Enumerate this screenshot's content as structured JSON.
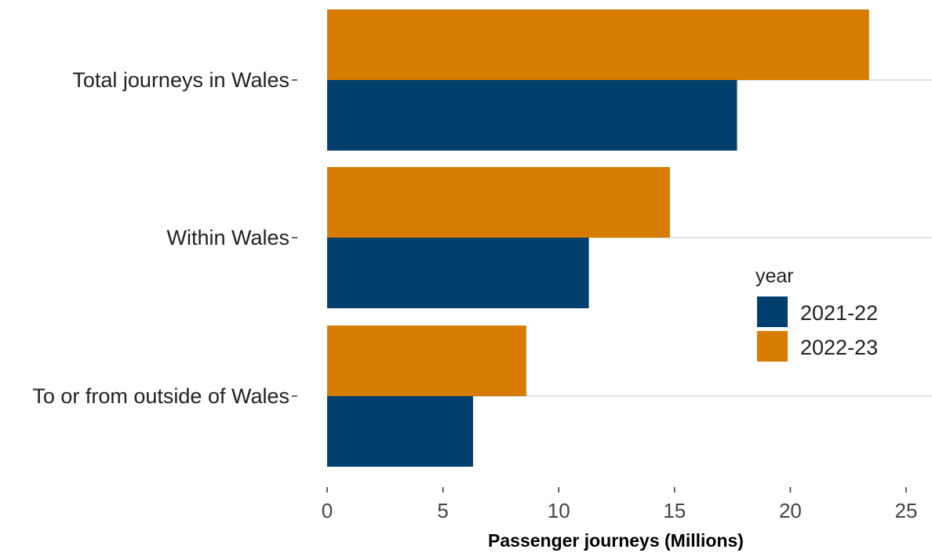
{
  "chart_data": {
    "type": "bar",
    "orientation": "horizontal",
    "categories": [
      "Total journeys in Wales",
      "Within Wales",
      "To or from outside of Wales"
    ],
    "series": [
      {
        "name": "2021-22",
        "values": [
          17.7,
          11.3,
          6.3
        ],
        "color": "#003f6e"
      },
      {
        "name": "2022-23",
        "values": [
          23.4,
          14.8,
          8.6
        ],
        "color": "#d67c00"
      }
    ],
    "xlabel": "Passenger journeys (Millions)",
    "ylabel": "",
    "xlim": [
      0,
      25
    ],
    "xticks": [
      0,
      5,
      10,
      15,
      20,
      25
    ],
    "legend_title": "year",
    "legend_position": "right",
    "grid": "major gridlines at category centers"
  }
}
